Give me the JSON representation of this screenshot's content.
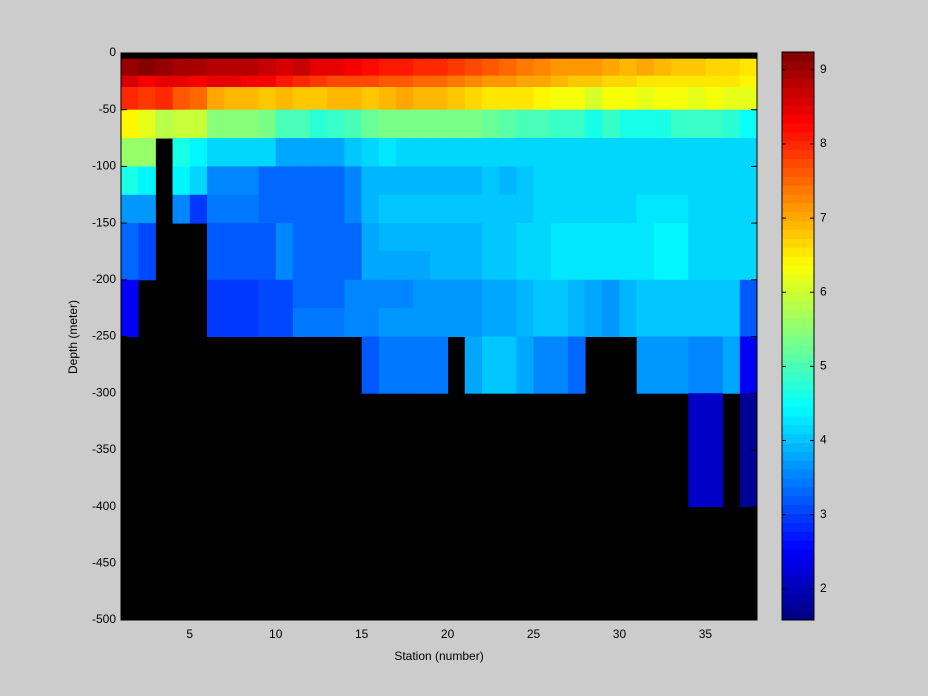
{
  "chart_data": {
    "type": "heatmap",
    "xlabel": "Station (number)",
    "ylabel": "Depth (meter)",
    "x": [
      1,
      2,
      3,
      4,
      5,
      6,
      7,
      8,
      9,
      10,
      11,
      12,
      13,
      14,
      15,
      16,
      17,
      18,
      19,
      20,
      21,
      22,
      23,
      24,
      25,
      26,
      27,
      28,
      29,
      30,
      31,
      32,
      33,
      34,
      35,
      36,
      37,
      38
    ],
    "y": [
      -5,
      -20,
      -30,
      -50,
      -75,
      -100,
      -125,
      -150,
      -175,
      -200,
      -225,
      -250,
      -275,
      -300,
      -325,
      -350,
      -375,
      -400
    ],
    "values": [
      [
        9.1,
        9.2,
        9.1,
        8.9,
        8.9,
        8.8,
        8.8,
        8.8,
        8.7,
        8.6,
        8.7,
        8.5,
        8.5,
        8.3,
        8.2,
        8.1,
        8.1,
        8.0,
        8.0,
        7.9,
        7.7,
        7.6,
        7.5,
        7.4,
        7.3,
        7.2,
        7.1,
        7.1,
        7.0,
        6.9,
        7.0,
        6.9,
        6.8,
        6.8,
        6.7,
        6.7,
        6.6
      ],
      [
        8.6,
        8.4,
        8.5,
        8.5,
        8.3,
        8.5,
        8.5,
        8.4,
        8.3,
        8.1,
        8.0,
        7.9,
        7.8,
        7.8,
        7.7,
        7.6,
        7.6,
        7.5,
        7.5,
        7.4,
        7.3,
        7.2,
        7.1,
        7.0,
        7.0,
        6.9,
        6.8,
        6.8,
        6.7,
        6.7,
        6.6,
        6.6,
        6.6,
        6.5,
        6.5,
        6.5,
        6.4
      ],
      [
        8.0,
        7.9,
        8.0,
        7.6,
        7.5,
        7.0,
        6.9,
        6.9,
        6.8,
        6.9,
        6.8,
        6.8,
        6.9,
        6.9,
        6.8,
        6.9,
        7.0,
        6.9,
        6.9,
        6.8,
        6.7,
        6.6,
        6.5,
        6.5,
        6.4,
        6.3,
        6.3,
        6.1,
        6.3,
        6.3,
        6.2,
        6.3,
        6.3,
        6.2,
        6.3,
        6.2,
        6.2
      ],
      [
        6.4,
        6.2,
        5.8,
        6.0,
        6.0,
        5.5,
        5.5,
        5.5,
        5.4,
        5.0,
        5.0,
        4.7,
        4.9,
        5.0,
        5.2,
        5.4,
        5.4,
        5.4,
        5.4,
        5.4,
        5.3,
        5.2,
        5.1,
        5.0,
        5.0,
        4.9,
        4.9,
        4.6,
        4.9,
        4.6,
        4.6,
        4.6,
        4.9,
        4.9,
        4.9,
        4.8,
        4.5
      ],
      [
        5.6,
        5.6,
        null,
        4.6,
        4.4,
        4.2,
        4.2,
        4.2,
        4.2,
        3.8,
        3.8,
        3.8,
        3.8,
        4.0,
        4.2,
        4.3,
        4.2,
        4.2,
        4.2,
        4.2,
        4.2,
        4.2,
        4.1,
        4.2,
        4.1,
        4.1,
        4.1,
        4.1,
        4.1,
        4.1,
        4.1,
        4.1,
        4.1,
        4.1,
        4.1,
        4.1,
        4.1
      ],
      [
        4.6,
        4.4,
        null,
        4.4,
        4.2,
        3.6,
        3.6,
        3.6,
        3.3,
        3.3,
        3.3,
        3.3,
        3.3,
        3.5,
        3.9,
        3.9,
        3.9,
        3.9,
        3.9,
        3.9,
        3.9,
        4.0,
        3.9,
        4.0,
        4.1,
        4.1,
        4.1,
        4.1,
        4.1,
        4.1,
        4.1,
        4.2,
        4.1,
        4.1,
        4.1,
        4.1,
        4.1
      ],
      [
        3.7,
        3.7,
        null,
        3.5,
        3.0,
        3.4,
        3.4,
        3.4,
        3.3,
        3.3,
        3.3,
        3.3,
        3.3,
        3.6,
        3.9,
        4.0,
        4.0,
        4.0,
        4.0,
        4.0,
        4.0,
        4.0,
        4.0,
        4.0,
        4.1,
        4.1,
        4.2,
        4.2,
        4.2,
        4.2,
        4.3,
        4.3,
        4.3,
        4.2,
        4.2,
        4.2,
        4.2
      ],
      [
        3.3,
        3.1,
        null,
        null,
        null,
        3.2,
        3.2,
        3.2,
        3.2,
        3.5,
        3.3,
        3.3,
        3.3,
        3.3,
        3.8,
        3.9,
        3.9,
        3.9,
        3.9,
        3.9,
        3.9,
        4.0,
        4.0,
        4.1,
        4.2,
        4.3,
        4.3,
        4.3,
        4.3,
        4.3,
        4.3,
        4.4,
        4.4,
        4.2,
        4.2,
        4.2,
        4.1
      ],
      [
        3.3,
        3.1,
        null,
        null,
        null,
        3.2,
        3.2,
        3.2,
        3.2,
        3.5,
        3.3,
        3.3,
        3.3,
        3.3,
        3.8,
        3.8,
        3.8,
        3.8,
        3.9,
        3.9,
        3.9,
        4.0,
        4.0,
        4.1,
        4.2,
        4.3,
        4.3,
        4.3,
        4.3,
        4.3,
        4.3,
        4.4,
        4.4,
        4.2,
        4.2,
        4.2,
        4.1
      ],
      [
        2.5,
        null,
        null,
        null,
        null,
        2.9,
        2.9,
        2.9,
        3.1,
        3.1,
        3.3,
        3.3,
        3.3,
        3.5,
        3.5,
        3.6,
        3.6,
        3.7,
        3.7,
        3.7,
        3.7,
        3.8,
        3.8,
        3.9,
        4.0,
        4.0,
        3.9,
        3.8,
        3.7,
        3.9,
        4.0,
        4.0,
        4.0,
        4.0,
        4.0,
        4.0,
        3.2
      ],
      [
        2.5,
        null,
        null,
        null,
        null,
        2.9,
        2.9,
        2.9,
        3.1,
        3.1,
        3.4,
        3.4,
        3.4,
        3.6,
        3.6,
        3.7,
        3.7,
        3.7,
        3.7,
        3.7,
        3.7,
        3.8,
        3.8,
        3.9,
        4.0,
        4.0,
        3.9,
        3.8,
        3.7,
        3.9,
        4.0,
        4.0,
        4.0,
        4.0,
        4.0,
        4.0,
        3.2
      ],
      [
        null,
        null,
        null,
        null,
        null,
        null,
        null,
        null,
        null,
        null,
        null,
        null,
        null,
        null,
        3.2,
        3.4,
        3.4,
        3.4,
        3.4,
        null,
        3.8,
        4.0,
        4.0,
        3.8,
        3.6,
        3.6,
        3.3,
        null,
        null,
        null,
        3.7,
        3.7,
        3.7,
        3.6,
        3.6,
        3.8,
        2.5
      ],
      [
        null,
        null,
        null,
        null,
        null,
        null,
        null,
        null,
        null,
        null,
        null,
        null,
        null,
        null,
        3.2,
        3.4,
        3.4,
        3.4,
        3.4,
        null,
        3.8,
        4.0,
        4.0,
        3.8,
        3.6,
        3.6,
        3.3,
        null,
        null,
        null,
        3.7,
        3.7,
        3.7,
        3.6,
        3.6,
        3.8,
        2.5
      ],
      [
        null,
        null,
        null,
        null,
        null,
        null,
        null,
        null,
        null,
        null,
        null,
        null,
        null,
        null,
        null,
        null,
        null,
        null,
        null,
        null,
        null,
        null,
        null,
        null,
        null,
        null,
        null,
        null,
        null,
        null,
        null,
        null,
        null,
        2.1,
        2.1,
        null,
        1.7
      ],
      [
        null,
        null,
        null,
        null,
        null,
        null,
        null,
        null,
        null,
        null,
        null,
        null,
        null,
        null,
        null,
        null,
        null,
        null,
        null,
        null,
        null,
        null,
        null,
        null,
        null,
        null,
        null,
        null,
        null,
        null,
        null,
        null,
        null,
        2.1,
        2.1,
        null,
        1.7
      ],
      [
        null,
        null,
        null,
        null,
        null,
        null,
        null,
        null,
        null,
        null,
        null,
        null,
        null,
        null,
        null,
        null,
        null,
        null,
        null,
        null,
        null,
        null,
        null,
        null,
        null,
        null,
        null,
        null,
        null,
        null,
        null,
        null,
        null,
        2.1,
        2.1,
        null,
        1.7
      ],
      [
        null,
        null,
        null,
        null,
        null,
        null,
        null,
        null,
        null,
        null,
        null,
        null,
        null,
        null,
        null,
        null,
        null,
        null,
        null,
        null,
        null,
        null,
        null,
        null,
        null,
        null,
        null,
        null,
        null,
        null,
        null,
        null,
        null,
        2.1,
        2.1,
        null,
        1.7
      ]
    ],
    "xlim": [
      1,
      38
    ],
    "ylim": [
      -500,
      0
    ],
    "xticks": [
      5,
      10,
      15,
      20,
      25,
      30,
      35
    ],
    "yticks": [
      0,
      -50,
      -100,
      -150,
      -200,
      -250,
      -300,
      -350,
      -400,
      -450,
      -500
    ],
    "clim": [
      1.58,
      9.24
    ],
    "cticks": [
      2,
      3,
      4,
      5,
      6,
      7,
      8,
      9
    ],
    "colormap": "jet",
    "background": "#000000"
  }
}
